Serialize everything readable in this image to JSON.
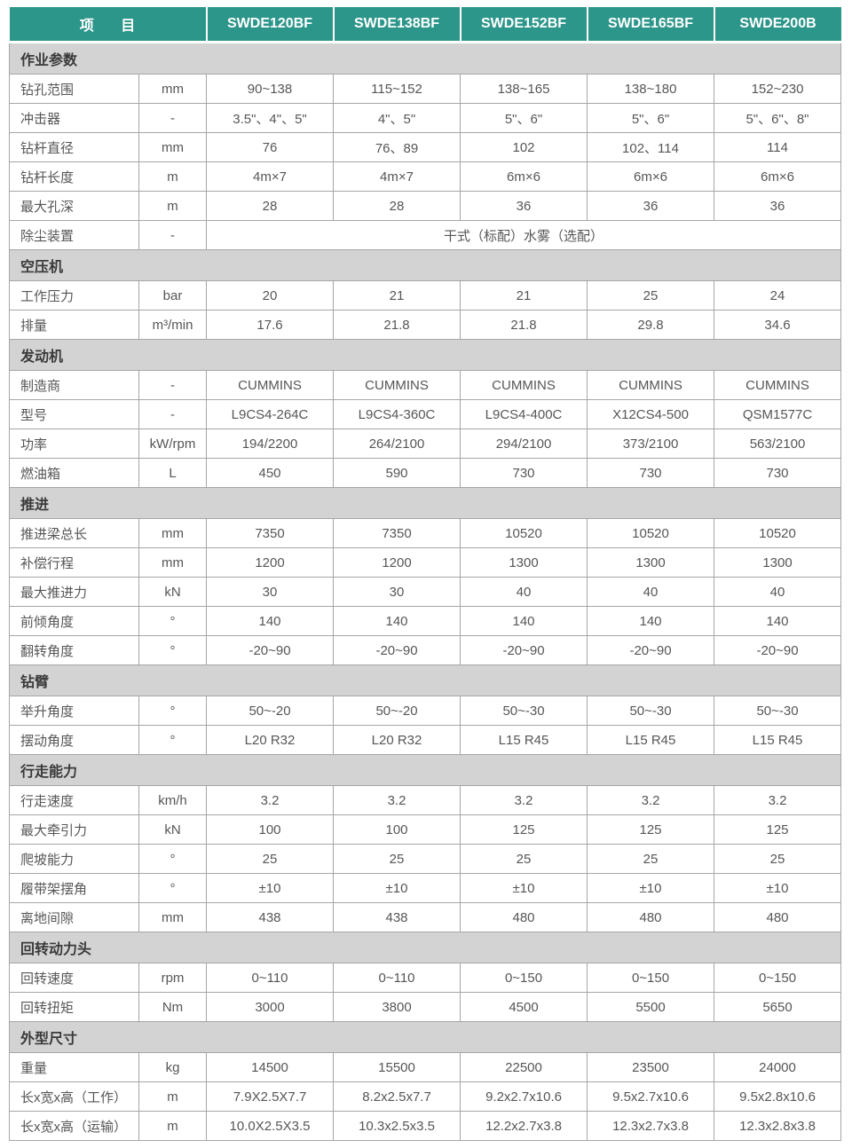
{
  "colors": {
    "header_bg": "#2d968a",
    "header_text": "#ffffff",
    "section_bg": "#d3d3d3",
    "border": "#a6a6a6",
    "cell_text": "#565656"
  },
  "header": {
    "item_label": "项 目",
    "models": [
      "SWDE120BF",
      "SWDE138BF",
      "SWDE152BF",
      "SWDE165BF",
      "SWDE200B"
    ]
  },
  "sections": [
    {
      "title": "作业参数",
      "rows": [
        {
          "label": "钻孔范围",
          "unit": "mm",
          "values": [
            "90~138",
            "115~152",
            "138~165",
            "138~180",
            "152~230"
          ]
        },
        {
          "label": "冲击器",
          "unit": "-",
          "values": [
            "3.5\"、4\"、5\"",
            "4\"、5\"",
            "5\"、6\"",
            "5\"、6\"",
            "5\"、6\"、8\""
          ]
        },
        {
          "label": "钻杆直径",
          "unit": "mm",
          "values": [
            "76",
            "76、89",
            "102",
            "102、114",
            "114"
          ]
        },
        {
          "label": "钻杆长度",
          "unit": "m",
          "values": [
            "4m×7",
            "4m×7",
            "6m×6",
            "6m×6",
            "6m×6"
          ]
        },
        {
          "label": "最大孔深",
          "unit": "m",
          "values": [
            "28",
            "28",
            "36",
            "36",
            "36"
          ]
        },
        {
          "label": "除尘装置",
          "unit": "-",
          "span_value": "干式（标配）水雾（选配）"
        }
      ]
    },
    {
      "title": "空压机",
      "rows": [
        {
          "label": "工作压力",
          "unit": "bar",
          "values": [
            "20",
            "21",
            "21",
            "25",
            "24"
          ]
        },
        {
          "label": "排量",
          "unit": "m³/min",
          "values": [
            "17.6",
            "21.8",
            "21.8",
            "29.8",
            "34.6"
          ]
        }
      ]
    },
    {
      "title": "发动机",
      "rows": [
        {
          "label": "制造商",
          "unit": "-",
          "values": [
            "CUMMINS",
            "CUMMINS",
            "CUMMINS",
            "CUMMINS",
            "CUMMINS"
          ]
        },
        {
          "label": "型号",
          "unit": "-",
          "values": [
            "L9CS4-264C",
            "L9CS4-360C",
            "L9CS4-400C",
            "X12CS4-500",
            "QSM1577C"
          ]
        },
        {
          "label": "功率",
          "unit": "kW/rpm",
          "values": [
            "194/2200",
            "264/2100",
            "294/2100",
            "373/2100",
            "563/2100"
          ]
        },
        {
          "label": "燃油箱",
          "unit": "L",
          "values": [
            "450",
            "590",
            "730",
            "730",
            "730"
          ]
        }
      ]
    },
    {
      "title": "推进",
      "rows": [
        {
          "label": "推进梁总长",
          "unit": "mm",
          "values": [
            "7350",
            "7350",
            "10520",
            "10520",
            "10520"
          ]
        },
        {
          "label": "补偿行程",
          "unit": "mm",
          "values": [
            "1200",
            "1200",
            "1300",
            "1300",
            "1300"
          ]
        },
        {
          "label": "最大推进力",
          "unit": "kN",
          "values": [
            "30",
            "30",
            "40",
            "40",
            "40"
          ]
        },
        {
          "label": "前倾角度",
          "unit": "°",
          "values": [
            "140",
            "140",
            "140",
            "140",
            "140"
          ]
        },
        {
          "label": "翻转角度",
          "unit": "°",
          "values": [
            "-20~90",
            "-20~90",
            "-20~90",
            "-20~90",
            "-20~90"
          ]
        }
      ]
    },
    {
      "title": "钻臂",
      "rows": [
        {
          "label": "举升角度",
          "unit": "°",
          "values": [
            "50~-20",
            "50~-20",
            "50~-30",
            "50~-30",
            "50~-30"
          ]
        },
        {
          "label": "摆动角度",
          "unit": "°",
          "values": [
            "L20 R32",
            "L20 R32",
            "L15 R45",
            "L15 R45",
            "L15 R45"
          ]
        }
      ]
    },
    {
      "title": "行走能力",
      "rows": [
        {
          "label": "行走速度",
          "unit": "km/h",
          "values": [
            "3.2",
            "3.2",
            "3.2",
            "3.2",
            "3.2"
          ]
        },
        {
          "label": "最大牵引力",
          "unit": "kN",
          "values": [
            "100",
            "100",
            "125",
            "125",
            "125"
          ]
        },
        {
          "label": "爬坡能力",
          "unit": "°",
          "values": [
            "25",
            "25",
            "25",
            "25",
            "25"
          ]
        },
        {
          "label": "履带架摆角",
          "unit": "°",
          "values": [
            "±10",
            "±10",
            "±10",
            "±10",
            "±10"
          ]
        },
        {
          "label": "离地间隙",
          "unit": "mm",
          "values": [
            "438",
            "438",
            "480",
            "480",
            "480"
          ]
        }
      ]
    },
    {
      "title": "回转动力头",
      "rows": [
        {
          "label": "回转速度",
          "unit": "rpm",
          "values": [
            "0~110",
            "0~110",
            "0~150",
            "0~150",
            "0~150"
          ]
        },
        {
          "label": "回转扭矩",
          "unit": "Nm",
          "values": [
            "3000",
            "3800",
            "4500",
            "5500",
            "5650"
          ]
        }
      ]
    },
    {
      "title": "外型尺寸",
      "rows": [
        {
          "label": "重量",
          "unit": "kg",
          "values": [
            "14500",
            "15500",
            "22500",
            "23500",
            "24000"
          ]
        },
        {
          "label": "长x宽x高（工作）",
          "unit": "m",
          "values": [
            "7.9X2.5X7.7",
            "8.2x2.5x7.7",
            "9.2x2.7x10.6",
            "9.5x2.7x10.6",
            "9.5x2.8x10.6"
          ]
        },
        {
          "label": "长x宽x高（运输）",
          "unit": "m",
          "values": [
            "10.0X2.5X3.5",
            "10.3x2.5x3.5",
            "12.2x2.7x3.8",
            "12.3x2.7x3.8",
            "12.3x2.8x3.8"
          ]
        }
      ]
    }
  ]
}
